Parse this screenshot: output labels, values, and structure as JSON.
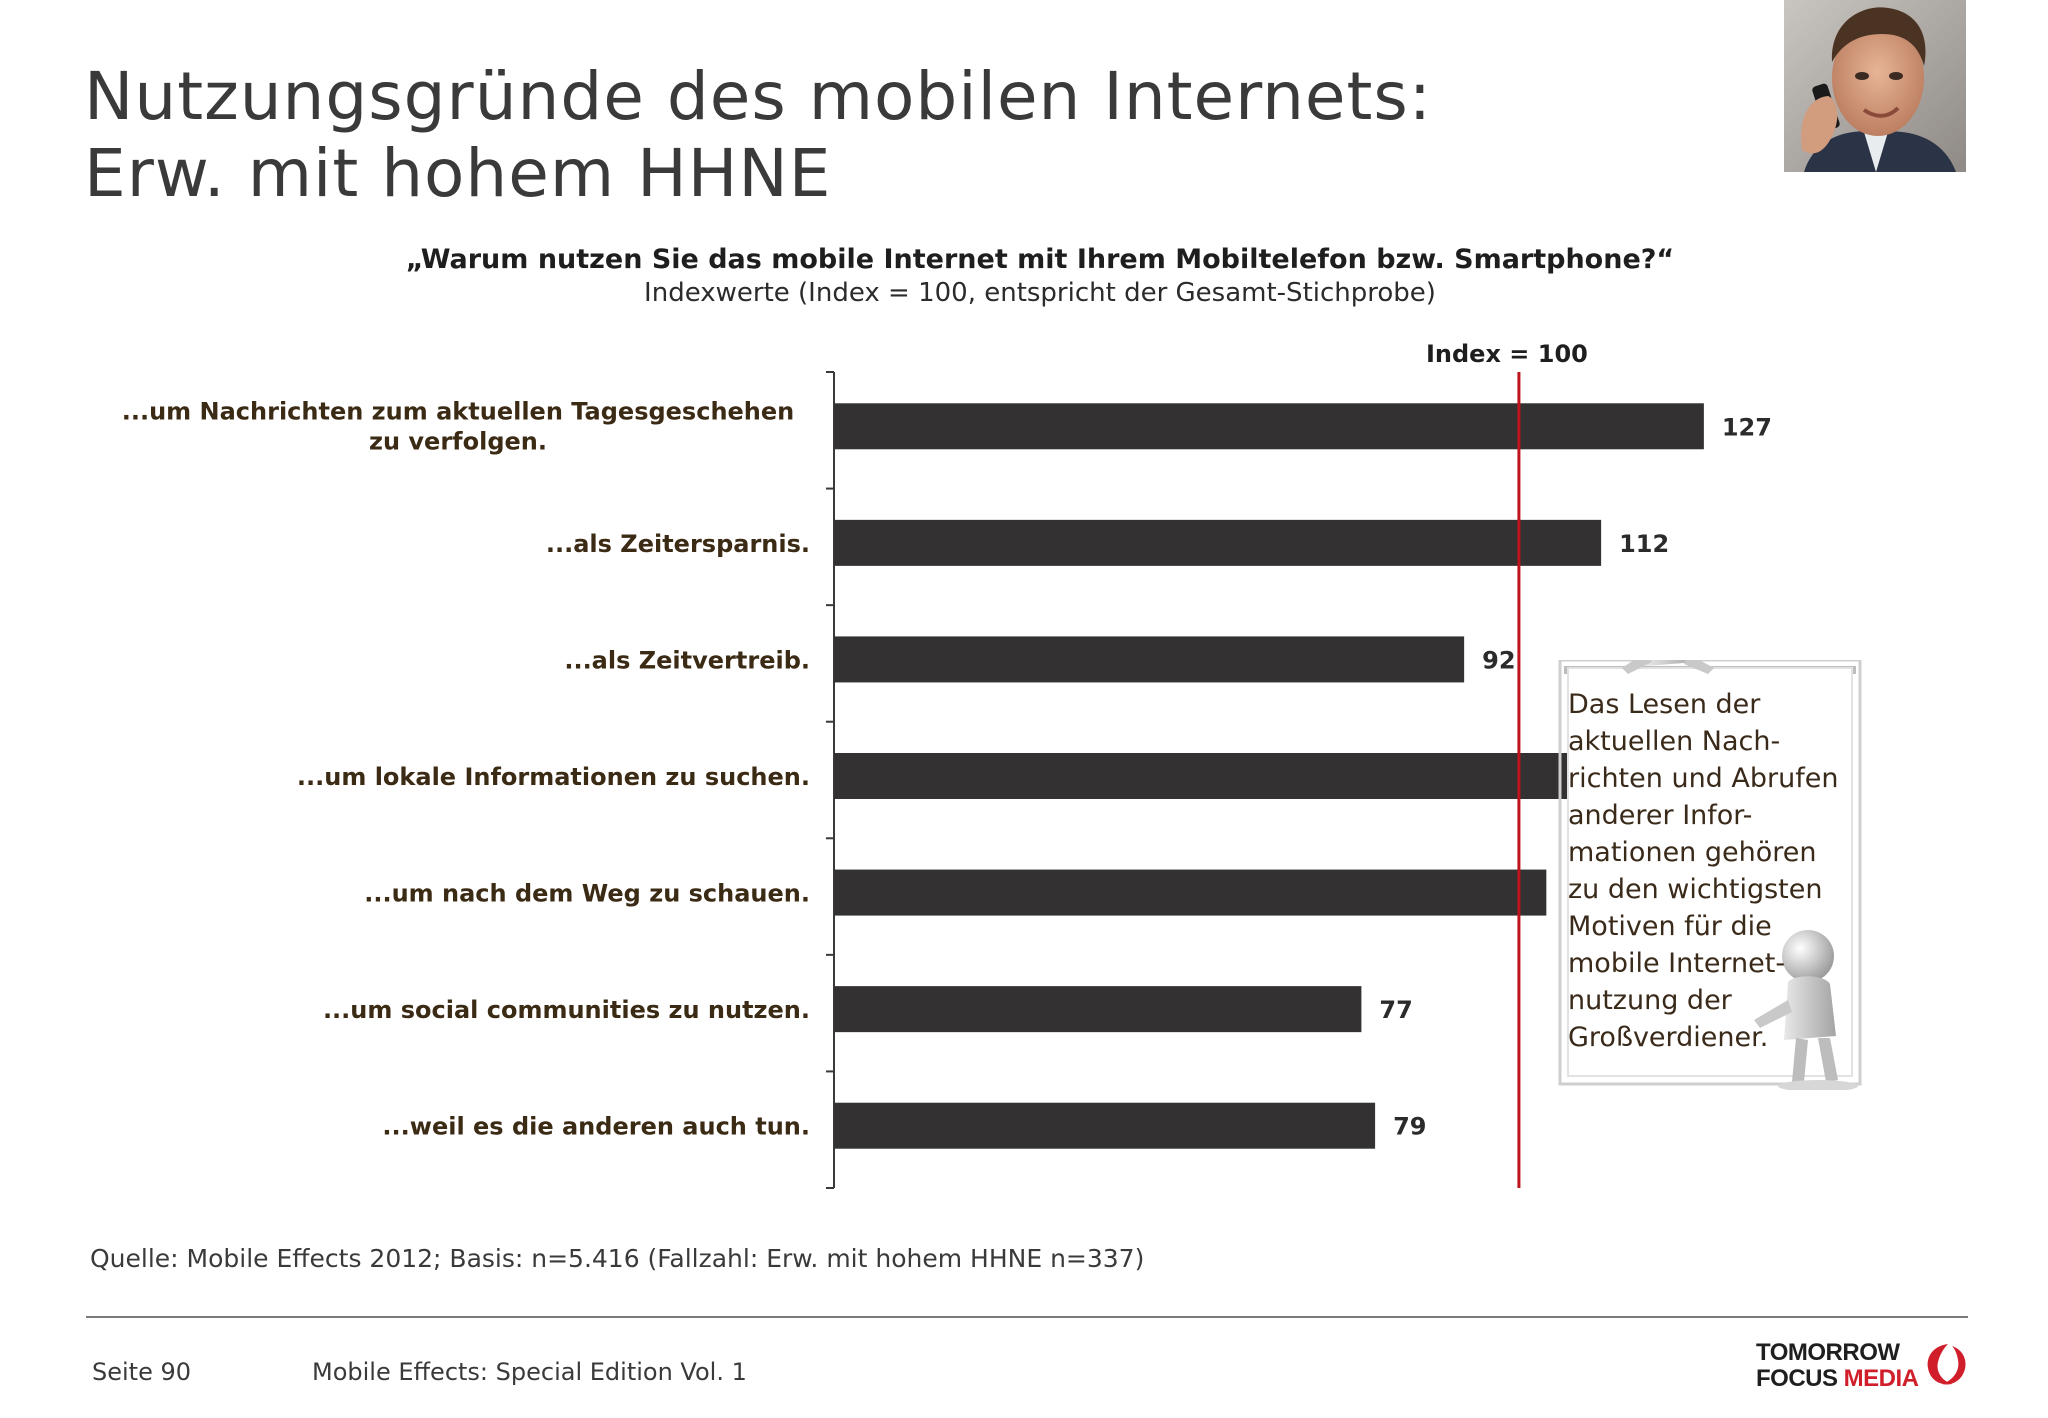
{
  "slide": {
    "title_line1": "Nutzungsgründe des mobilen Internets:",
    "title_line2": "Erw. mit hohem HHNE"
  },
  "question": "„Warum nutzen Sie das mobile Internet mit Ihrem Mobiltelefon bzw. Smartphone?“",
  "subtitle": "Indexwerte (Index = 100, entspricht der Gesamt-Stichprobe)",
  "chart_data": {
    "type": "bar",
    "orientation": "horizontal",
    "categories": [
      "...um Nachrichten zum aktuellen Tagesgeschehen zu verfolgen.",
      "...als Zeitersparnis.",
      "...als Zeitvertreib.",
      "...um lokale Informationen zu suchen.",
      "...um nach dem Weg zu schauen.",
      "...um social communities zu nutzen.",
      "...weil es die anderen auch tun."
    ],
    "values": [
      127,
      112,
      92,
      125,
      104,
      77,
      79
    ],
    "xlim": [
      0,
      146
    ],
    "reference_line": {
      "value": 100,
      "label": "Index = 100",
      "color": "#c0141c"
    },
    "bar_color": "#333132",
    "grid": false,
    "legend": "none"
  },
  "callout": {
    "text": "Das Lesen der\naktuellen Nach-\nrichten und Abrufen\nanderer Infor-\nmationen gehören\nzu den wichtigsten\nMotiven für die\nmobile Internet-\nnutzung der\nGroßverdiener.",
    "figure_icon": "3d-figure-icon"
  },
  "source": "Quelle: Mobile Effects 2012; Basis: n=5.416 (Fallzahl: Erw. mit hohem HHNE n=337)",
  "footer": {
    "page": "Seite 90",
    "publication": "Mobile Effects: Special Edition Vol. 1",
    "logo_line1": "TOMORROW",
    "logo_line2_a": "FOCUS",
    "logo_line2_b": "MEDIA",
    "logo_accent": "#d01f2b"
  },
  "photo": {
    "icon": "businessman-phone-photo"
  }
}
